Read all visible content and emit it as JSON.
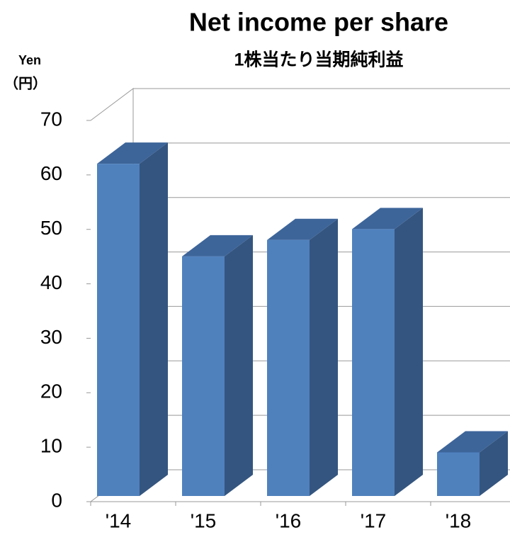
{
  "chart_data": {
    "type": "bar3d",
    "title": "Net income per share",
    "subtitle": "1株当たり当期純利益",
    "y_axis_label": "Yen",
    "y_axis_label_2": "（円）",
    "categories": [
      "'14",
      "'15",
      "'16",
      "'17",
      "'18"
    ],
    "values": [
      61,
      44,
      47,
      49,
      8
    ],
    "color": "#4f81bd",
    "ylim": [
      0,
      70
    ],
    "yticks": [
      0,
      10,
      20,
      30,
      40,
      50,
      60,
      70
    ],
    "grid": true
  }
}
